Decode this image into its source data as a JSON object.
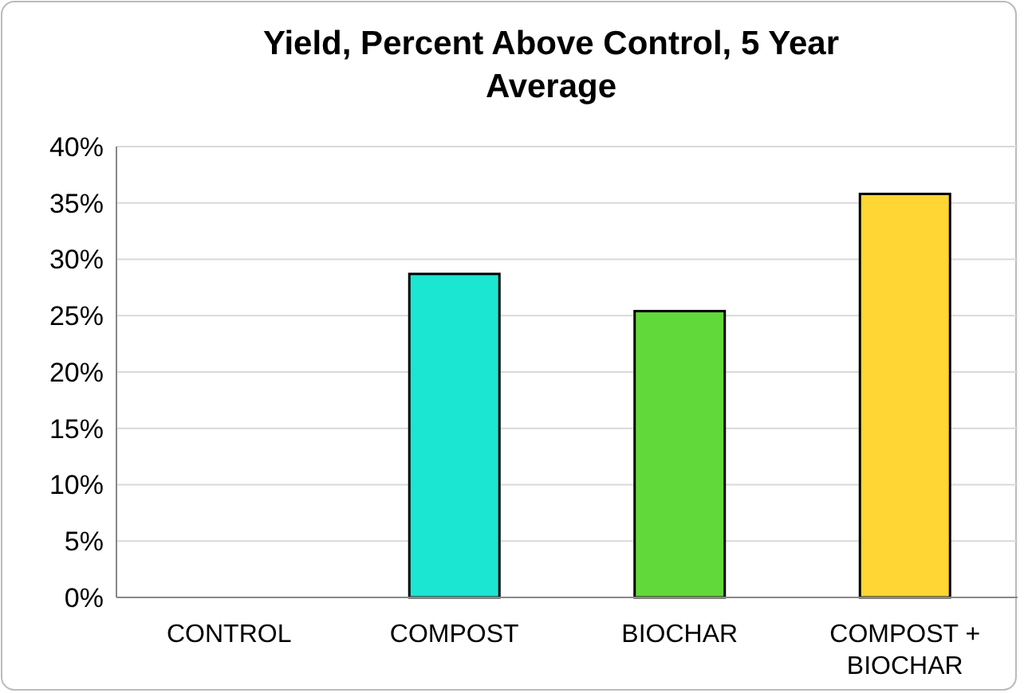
{
  "chart_data": {
    "type": "bar",
    "title": "Yield, Percent Above Control, 5 Year Average",
    "categories": [
      "CONTROL",
      "COMPOST",
      "BIOCHAR",
      "COMPOST + BIOCHAR"
    ],
    "values": [
      0,
      28.7,
      25.4,
      35.8
    ],
    "colors": [
      "#1ae6d2",
      "#1ae6d2",
      "#62d93a",
      "#ffd633"
    ],
    "ylim": [
      0,
      40
    ],
    "yticks": [
      {
        "value": 0,
        "label": "0%"
      },
      {
        "value": 5,
        "label": "5%"
      },
      {
        "value": 10,
        "label": "10%"
      },
      {
        "value": 15,
        "label": "15%"
      },
      {
        "value": 20,
        "label": "20%"
      },
      {
        "value": 25,
        "label": "25%"
      },
      {
        "value": 30,
        "label": "30%"
      },
      {
        "value": 35,
        "label": "35%"
      },
      {
        "value": 40,
        "label": "40%"
      }
    ],
    "grid": "y"
  }
}
